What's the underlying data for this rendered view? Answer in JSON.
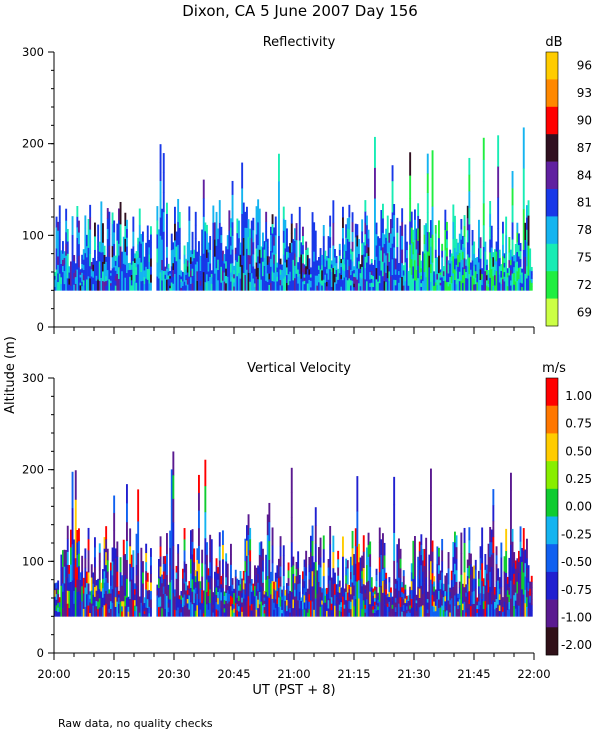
{
  "figure": {
    "title": "Dixon, CA  5 June 2007  Day 156",
    "ylabel": "Altitude (m)",
    "xlabel": "UT  (PST + 8)",
    "footnote": "Raw data, no quality checks"
  },
  "chart_data": [
    {
      "type": "heatmap",
      "title": "Reflectivity",
      "colorbar_unit": "dB",
      "colorbar_ticks": [
        "96",
        "93",
        "90",
        "87",
        "84",
        "81",
        "78",
        "75",
        "72",
        "69"
      ],
      "colorbar_colors": [
        "#ffcc00",
        "#ff8800",
        "#ff0000",
        "#301020",
        "#6020a0",
        "#1838e8",
        "#14b4f0",
        "#18ecb4",
        "#20ee40",
        "#ccff44"
      ],
      "xlabel": "UT  (PST + 8)",
      "ylabel": "Altitude (m)",
      "x_ticks": [
        "20:00",
        "20:15",
        "20:30",
        "20:45",
        "21:00",
        "21:15",
        "21:30",
        "21:45",
        "22:00"
      ],
      "xlim_minutes": [
        0,
        120
      ],
      "y_ticks": [
        "0",
        "100",
        "200",
        "300"
      ],
      "ylim": [
        0,
        300
      ],
      "data_floor_m": 40,
      "typical_top_m": [
        60,
        140
      ],
      "max_top_m": 220
    },
    {
      "type": "heatmap",
      "title": "Vertical Velocity",
      "colorbar_unit": "m/s",
      "colorbar_ticks": [
        "1.00",
        "0.75",
        "0.50",
        "0.25",
        "0.00",
        "-0.25",
        "-0.50",
        "-0.75",
        "-1.00",
        "-2.00"
      ],
      "colorbar_colors": [
        "#ff0000",
        "#ff7700",
        "#ffcc00",
        "#88ee00",
        "#10cc30",
        "#14b4f0",
        "#1060f0",
        "#2020d0",
        "#5a1a90",
        "#301018"
      ],
      "xlabel": "UT  (PST + 8)",
      "ylabel": "Altitude (m)",
      "x_ticks": [
        "20:00",
        "20:15",
        "20:30",
        "20:45",
        "21:00",
        "21:15",
        "21:30",
        "21:45",
        "22:00"
      ],
      "xlim_minutes": [
        0,
        120
      ],
      "y_ticks": [
        "0",
        "100",
        "200",
        "300"
      ],
      "ylim": [
        0,
        300
      ],
      "data_floor_m": 40,
      "typical_top_m": [
        60,
        140
      ],
      "max_top_m": 220
    }
  ]
}
